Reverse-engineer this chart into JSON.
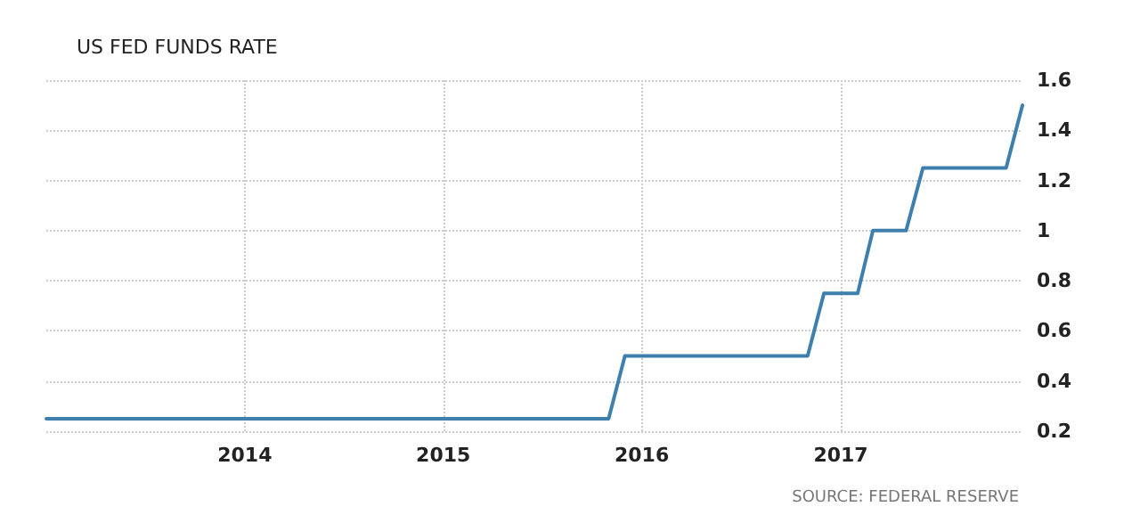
{
  "chart_data": {
    "type": "line",
    "title": "US FED FUNDS RATE",
    "annotations": [
      "SOURCE: FEDERAL RESERVE"
    ],
    "x": [
      "2013-01",
      "2015-11",
      "2015-12",
      "2016-11",
      "2016-12",
      "2017-02",
      "2017-03",
      "2017-05",
      "2017-06",
      "2017-11",
      "2017-12"
    ],
    "series": [
      {
        "color": "#3f7fae",
        "values": [
          0.25,
          0.25,
          0.5,
          0.5,
          0.75,
          0.75,
          1,
          1,
          1.25,
          1.25,
          1.5
        ]
      }
    ],
    "xlim": [
      "2013-01",
      "2017-12"
    ],
    "xticks": [
      "2014",
      "2015",
      "2016",
      "2017"
    ],
    "ylim": [
      0.2,
      1.6
    ],
    "yticks": [
      0.2,
      0.4,
      0.6,
      0.8,
      1,
      1.2,
      1.4,
      1.6
    ],
    "grid": true,
    "marker": "none",
    "line_style": "solid"
  }
}
